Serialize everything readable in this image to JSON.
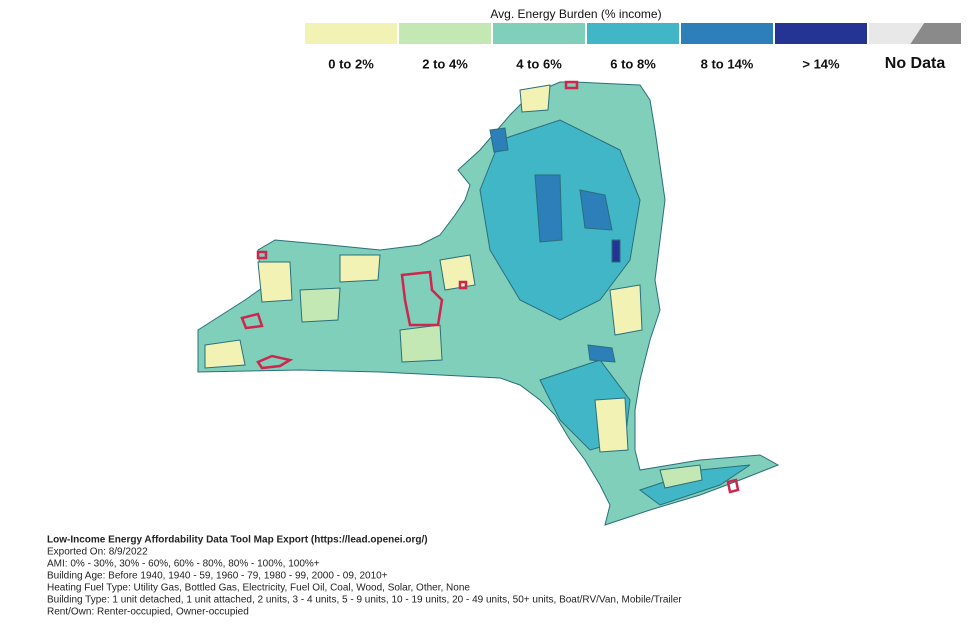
{
  "legend": {
    "title": "Avg. Energy Burden (% income)",
    "items": [
      {
        "label": "0 to 2%",
        "color": "#f2f2b4"
      },
      {
        "label": "2 to 4%",
        "color": "#c4e8b4"
      },
      {
        "label": "4 to 6%",
        "color": "#7fcfbb"
      },
      {
        "label": "6 to 8%",
        "color": "#41b6c6"
      },
      {
        "label": "8 to 14%",
        "color": "#2c7fb8"
      },
      {
        "label": "> 14%",
        "color": "#253494"
      },
      {
        "label": "No Data",
        "color": "#e8e8e8"
      }
    ]
  },
  "footer": {
    "title": "Low-Income Energy Affordability Data Tool Map Export (https://lead.openei.org/)",
    "lines": [
      "Exported On: 8/9/2022",
      "AMI: 0% - 30%, 30% - 60%, 60% - 80%, 80% - 100%, 100%+",
      "Building Age: Before 1940, 1940 - 59, 1960 - 79, 1980 - 99, 2000 - 09, 2010+",
      "Heating Fuel Type: Utility Gas, Bottled Gas, Electricity, Fuel Oil, Coal, Wood, Solar, Other, None",
      "Building Type: 1 unit detached, 1 unit attached, 2 units, 3 - 4 units, 5 - 9 units, 10 - 19 units, 20 - 49 units, 50+ units, Boat/RV/Van, Mobile/Trailer",
      "Rent/Own: Renter-occupied, Owner-occupied"
    ]
  }
}
